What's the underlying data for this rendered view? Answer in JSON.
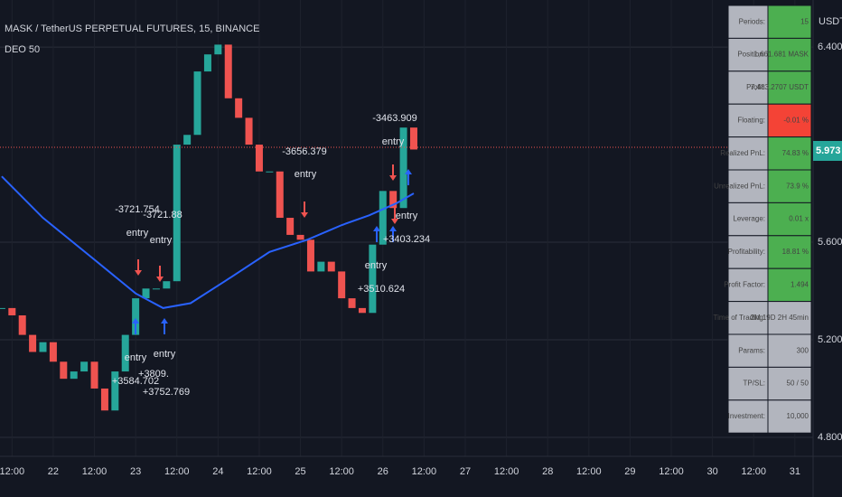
{
  "chart_data": {
    "type": "candlestick",
    "title": "MASK / TetherUS PERPETUAL FUTURES, 15, BINANCE",
    "subtitle": "DEO 50",
    "y_unit": "USDT",
    "xlim": [
      -15.5,
      221.3
    ],
    "xticks": [
      {
        "value": -12,
        "label": "12:00"
      },
      {
        "value": 0,
        "label": "22"
      },
      {
        "value": 12,
        "label": "12:00"
      },
      {
        "value": 24,
        "label": "23"
      },
      {
        "value": 36,
        "label": "12:00"
      },
      {
        "value": 48,
        "label": "24"
      },
      {
        "value": 60,
        "label": "12:00"
      },
      {
        "value": 72,
        "label": "25"
      },
      {
        "value": 84,
        "label": "12:00"
      },
      {
        "value": 96,
        "label": "26"
      },
      {
        "value": 108,
        "label": "12:00"
      },
      {
        "value": 120,
        "label": "27"
      },
      {
        "value": 132,
        "label": "12:00"
      },
      {
        "value": 144,
        "label": "28"
      },
      {
        "value": 156,
        "label": "12:00"
      },
      {
        "value": 168,
        "label": "29"
      },
      {
        "value": 180,
        "label": "12:00"
      },
      {
        "value": 192,
        "label": "30"
      },
      {
        "value": 204,
        "label": "12:00"
      },
      {
        "value": 216,
        "label": "31"
      }
    ],
    "ylim": [
      4.722,
      6.593
    ],
    "yticks": [
      {
        "value": 4.8,
        "label": "4.800"
      },
      {
        "value": 5.2,
        "label": "5.200"
      },
      {
        "value": 5.6,
        "label": "5.600"
      },
      {
        "value": 6.4,
        "label": "6.400"
      }
    ],
    "grid": true,
    "last_price": 5.973,
    "series": [
      {
        "name": "MASK",
        "up_color": "#26a69a",
        "down_color": "#ef5350",
        "x": [
          -15,
          -12,
          -9,
          -6,
          -3,
          0,
          3,
          6,
          9,
          12,
          15,
          18,
          21,
          24,
          27,
          30,
          33,
          36,
          39,
          42,
          45,
          48,
          51,
          54,
          57,
          60,
          63,
          66,
          69,
          72,
          75,
          78,
          81,
          84,
          87,
          90,
          93,
          96,
          99,
          102,
          105
        ],
        "values": [
          5.33,
          5.3,
          5.22,
          5.15,
          5.19,
          5.11,
          5.04,
          5.07,
          5.11,
          5.0,
          4.91,
          5.07,
          5.22,
          5.37,
          5.41,
          5.41,
          5.44,
          6.0,
          6.04,
          6.3,
          6.37,
          6.41,
          6.19,
          6.11,
          6.0,
          5.89,
          5.89,
          5.7,
          5.63,
          5.61,
          5.48,
          5.52,
          5.48,
          5.37,
          5.33,
          5.31,
          5.59,
          5.81,
          5.74,
          6.07,
          5.98
        ]
      },
      {
        "name": "DEO 50",
        "color": "#2962ff",
        "x": [
          -15,
          -3,
          11,
          24,
          32,
          40,
          50,
          63,
          74,
          84,
          92,
          100,
          105
        ],
        "values": [
          5.87,
          5.7,
          5.54,
          5.39,
          5.33,
          5.35,
          5.44,
          5.56,
          5.61,
          5.67,
          5.71,
          5.76,
          5.8
        ]
      }
    ],
    "annotations": [
      "-3721.754",
      "-3721.88",
      "entry",
      "entry",
      "-3656.379",
      "entry",
      "-3463.909",
      "entry",
      "entry",
      "+3403.234",
      "entry",
      "+3510.624",
      "entry",
      "+3584.702",
      "entry",
      "+3809.",
      "+3752.769"
    ]
  },
  "table": {
    "rows": [
      [
        "Periods:",
        "15"
      ],
      [
        "Position:",
        "1,661.681 MASK"
      ],
      [
        "Profit:",
        "7,483.2707 USDT"
      ],
      [
        "Floating:",
        "-0.01 %"
      ],
      [
        "Realized PnL:",
        "74.83 %"
      ],
      [
        "Unrealized PnL:",
        "73.9 %"
      ],
      [
        "Leverage:",
        "0.01 x"
      ],
      [
        "Profitability:",
        "18.81 %"
      ],
      [
        "Profit Factor:",
        "1.494"
      ],
      [
        "Time of Trading:",
        "2M 19D 2H 45min"
      ],
      [
        "Params:",
        "300"
      ],
      [
        "TP/SL:",
        "50 / 50"
      ],
      [
        "Investment:",
        "10,000"
      ]
    ]
  }
}
